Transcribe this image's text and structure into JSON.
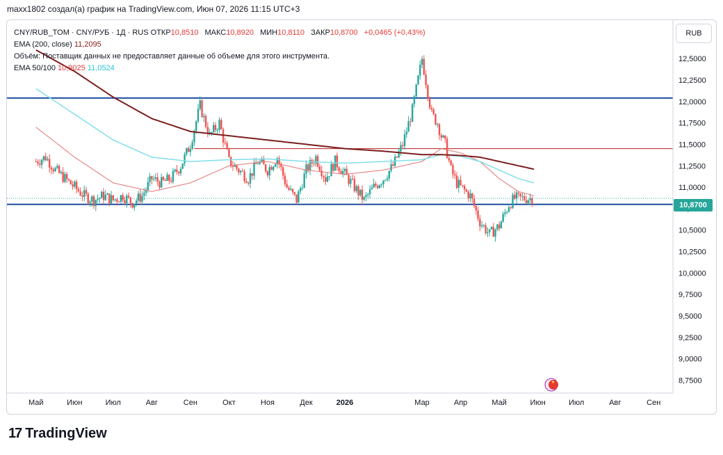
{
  "header": {
    "text": "maxx1802 создал(а) график на TradingView.com, Июн 07, 2026 11:15 UTC+3"
  },
  "legend": {
    "symbol": "CNY/RUB_TOM · CNY/РУБ · 1Д · RUS",
    "open_label": "ОТКР",
    "open": "10,8510",
    "high_label": "МАКС",
    "high": "10,8920",
    "low_label": "МИН",
    "low": "10,8110",
    "close_label": "ЗАКР",
    "close": "10,8700",
    "change": "+0,0465 (+0,43%)",
    "ema200_label": "EMA (200, close)",
    "ema200_value": "11,2095",
    "volume_note": "Объём: Поставщик данных не предоставляет данные об объеме для этого инструмента.",
    "ema50_100_label": "EMA 50/100",
    "ema50_value": "10,9025",
    "ema100_value": "11,0524"
  },
  "currency_button": "RUB",
  "price_label": "10,8700",
  "footer": {
    "logo_mark": "17",
    "logo_text": "TradingView"
  },
  "colors": {
    "up": "#26a69a",
    "down": "#ef5350",
    "ema50": "#e57373",
    "ema100": "#80deea",
    "ema200": "#7b1e1e",
    "hline_blue": "#1e4fa3",
    "hline_red": "#b71c1c"
  },
  "chart_data": {
    "type": "line",
    "title": "CNY/RUB_TOM · CNY/РУБ · 1Д · RUS",
    "ylim": [
      8.75,
      12.75
    ],
    "yticks": [
      "12,5000",
      "12,2500",
      "12,0000",
      "11,7500",
      "11,5000",
      "11,2500",
      "11,0000",
      "10,7500",
      "10,5000",
      "10,2500",
      "10,0000",
      "9,7500",
      "9,5000",
      "9,2500",
      "9,0000",
      "8,7500"
    ],
    "ytick_values": [
      12.5,
      12.25,
      12.0,
      11.75,
      11.5,
      11.25,
      11.0,
      10.75,
      10.5,
      10.25,
      10.0,
      9.75,
      9.5,
      9.25,
      9.0,
      8.75
    ],
    "xticks": [
      "Май",
      "Июн",
      "Июл",
      "Авг",
      "Сен",
      "Окт",
      "Ноя",
      "Дек",
      "2026",
      "Мар",
      "Апр",
      "Май",
      "Июн",
      "Июл",
      "Авг",
      "Сен"
    ],
    "x_range_months": [
      0,
      16.5
    ],
    "xtick_month_index": [
      0,
      1,
      2,
      3,
      4,
      5,
      6,
      7,
      8,
      10,
      11,
      12,
      13,
      14,
      15,
      16
    ],
    "horizontal_lines": [
      {
        "name": "resistance",
        "value": 12.04,
        "color": "#1e4fa3"
      },
      {
        "name": "support",
        "value": 10.8,
        "color": "#1e4fa3"
      },
      {
        "name": "mid-level",
        "value": 11.45,
        "color": "#b71c1c"
      }
    ],
    "series": [
      {
        "name": "price",
        "style": "candles",
        "x_month": [
          0,
          0.25,
          0.5,
          0.75,
          1,
          1.25,
          1.5,
          1.75,
          2,
          2.25,
          2.5,
          2.75,
          3,
          3.25,
          3.5,
          3.75,
          4,
          4.25,
          4.35,
          4.5,
          4.75,
          5,
          5.25,
          5.5,
          5.75,
          6,
          6.25,
          6.5,
          6.75,
          7,
          7.25,
          7.5,
          7.75,
          8,
          8.25,
          8.5,
          8.75,
          9,
          9.25,
          9.5,
          9.75,
          10,
          10.25,
          10.4,
          10.5,
          10.6,
          10.75,
          10.9,
          11,
          11.25,
          11.5,
          11.75,
          12,
          12.25,
          12.4,
          12.5,
          12.6,
          12.75,
          12.9
        ],
        "values": [
          11.3,
          11.35,
          11.2,
          11.1,
          11.0,
          10.9,
          10.85,
          10.9,
          10.85,
          10.9,
          10.82,
          10.9,
          11.1,
          11.05,
          11.1,
          11.25,
          11.5,
          11.95,
          11.8,
          11.6,
          11.75,
          11.3,
          11.2,
          11.1,
          11.3,
          11.2,
          11.35,
          11.0,
          10.85,
          11.2,
          11.35,
          11.1,
          11.3,
          11.15,
          11.0,
          10.85,
          11.0,
          11.1,
          11.25,
          11.5,
          11.9,
          12.5,
          11.85,
          11.75,
          11.6,
          11.5,
          11.2,
          11.05,
          11.0,
          10.9,
          10.6,
          10.45,
          10.55,
          10.8,
          10.87,
          10.87,
          10.87,
          10.87,
          10.87
        ]
      },
      {
        "name": "EMA 50",
        "style": "line",
        "x_month": [
          0,
          1,
          2,
          3,
          4,
          5,
          6,
          7,
          8,
          9,
          10,
          10.5,
          11,
          11.5,
          12,
          12.5,
          12.9
        ],
        "values": [
          11.7,
          11.35,
          11.05,
          10.95,
          11.05,
          11.25,
          11.3,
          11.2,
          11.15,
          11.2,
          11.3,
          11.45,
          11.4,
          11.3,
          11.1,
          10.95,
          10.9
        ]
      },
      {
        "name": "EMA 100",
        "style": "line",
        "x_month": [
          0,
          1,
          2,
          3,
          4,
          5,
          6,
          7,
          8,
          9,
          10,
          10.5,
          11,
          11.5,
          12,
          12.5,
          12.9
        ],
        "values": [
          12.15,
          11.85,
          11.55,
          11.35,
          11.3,
          11.32,
          11.33,
          11.3,
          11.28,
          11.3,
          11.32,
          11.38,
          11.36,
          11.3,
          11.2,
          11.1,
          11.05
        ]
      },
      {
        "name": "EMA 200",
        "style": "line",
        "x_month": [
          0,
          1,
          2,
          3,
          4,
          5,
          6,
          7,
          8,
          9,
          10,
          10.5,
          11,
          11.5,
          12,
          12.5,
          12.9
        ],
        "values": [
          12.6,
          12.35,
          12.05,
          11.8,
          11.65,
          11.6,
          11.55,
          11.5,
          11.45,
          11.42,
          11.38,
          11.38,
          11.37,
          11.35,
          11.3,
          11.25,
          11.21
        ]
      }
    ]
  }
}
